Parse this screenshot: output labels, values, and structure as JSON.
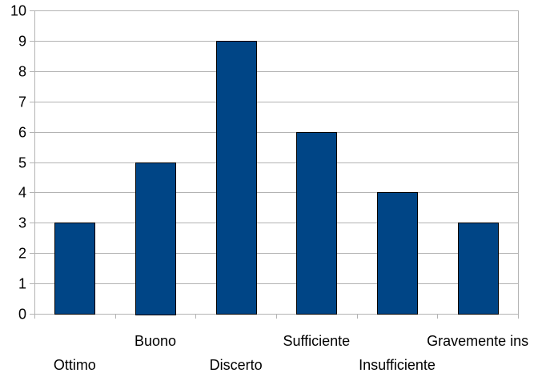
{
  "chart_data": {
    "type": "bar",
    "title": "",
    "xlabel": "",
    "ylabel": "",
    "categories": [
      "Ottimo",
      "Buono",
      "Discerto",
      "Sufficiente",
      "Insufficiente",
      "Gravemente ins"
    ],
    "values": [
      3,
      5,
      9,
      6,
      4,
      3
    ],
    "ylim": [
      0,
      10
    ],
    "yticks": [
      0,
      1,
      2,
      3,
      4,
      5,
      6,
      7,
      8,
      9,
      10
    ],
    "grid": true,
    "legend": "none",
    "colors": {
      "bar": "#004586",
      "bar_edge": "#000000",
      "grid": "#b3b3b3",
      "axis": "#b3b3b3",
      "text": "#000000"
    }
  }
}
